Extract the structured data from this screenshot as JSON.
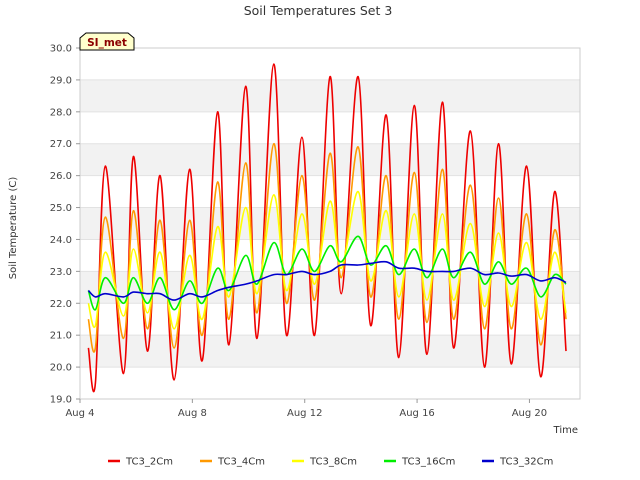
{
  "chart_data": {
    "type": "line",
    "title": "Soil Temperatures Set 3",
    "xlabel": "Time",
    "ylabel": "Soil Temperature (C)",
    "site_tag": "SI_met",
    "x_units": "day of August",
    "xlim": [
      4,
      21.8
    ],
    "ylim": [
      19.0,
      30.0
    ],
    "y_ticks": [
      "19.0",
      "20.0",
      "21.0",
      "22.0",
      "23.0",
      "24.0",
      "25.0",
      "26.0",
      "27.0",
      "28.0",
      "29.0",
      "30.0"
    ],
    "x_ticks": [
      {
        "value": 4,
        "label": "Aug 4"
      },
      {
        "value": 8,
        "label": "Aug 8"
      },
      {
        "value": 12,
        "label": "Aug 12"
      },
      {
        "value": 16,
        "label": "Aug 16"
      },
      {
        "value": 20,
        "label": "Aug 20"
      }
    ],
    "grid": "horizontal alternating bands",
    "legend_position": "bottom",
    "x": [
      4.3,
      4.55,
      4.9,
      5.55,
      5.9,
      6.4,
      6.85,
      7.35,
      7.9,
      8.35,
      8.9,
      9.3,
      9.9,
      10.3,
      10.9,
      11.35,
      11.9,
      12.35,
      12.9,
      13.3,
      13.9,
      14.35,
      14.9,
      15.35,
      15.9,
      16.35,
      16.9,
      17.3,
      17.9,
      18.4,
      18.9,
      19.35,
      19.9,
      20.4,
      20.9,
      21.3
    ],
    "series": [
      {
        "name": "TC3_2Cm",
        "color": "#ee0000",
        "values": [
          20.6,
          19.5,
          26.3,
          19.8,
          26.6,
          20.5,
          26.0,
          19.6,
          26.2,
          20.2,
          28.0,
          20.7,
          28.8,
          20.9,
          29.5,
          21.0,
          27.2,
          21.0,
          29.1,
          22.3,
          29.1,
          21.3,
          27.9,
          20.3,
          28.2,
          20.4,
          28.3,
          20.6,
          27.4,
          20.0,
          27.0,
          20.1,
          26.3,
          19.7,
          25.5,
          20.5
        ]
      },
      {
        "name": "TC3_4Cm",
        "color": "#ff9900",
        "values": [
          21.5,
          20.6,
          24.7,
          20.9,
          24.9,
          21.2,
          24.6,
          20.6,
          24.6,
          21.0,
          25.8,
          21.5,
          26.4,
          21.7,
          27.0,
          22.0,
          26.0,
          22.1,
          26.7,
          22.8,
          26.9,
          22.2,
          26.0,
          21.5,
          26.1,
          21.4,
          26.2,
          21.5,
          25.7,
          21.2,
          25.3,
          21.2,
          24.8,
          20.7,
          24.3,
          21.5
        ]
      },
      {
        "name": "TC3_8Cm",
        "color": "#ffff00",
        "values": [
          22.0,
          21.3,
          23.6,
          21.6,
          23.7,
          21.7,
          23.6,
          21.2,
          23.5,
          21.5,
          24.4,
          22.2,
          25.0,
          22.3,
          25.4,
          22.4,
          24.8,
          22.6,
          25.2,
          23.1,
          25.5,
          22.7,
          24.9,
          22.2,
          24.8,
          22.1,
          24.8,
          22.1,
          24.5,
          21.9,
          24.2,
          21.9,
          23.9,
          21.5,
          23.6,
          21.7
        ]
      },
      {
        "name": "TC3_16Cm",
        "color": "#00ee00",
        "values": [
          22.4,
          21.8,
          22.8,
          22.0,
          22.8,
          22.0,
          22.8,
          21.8,
          22.7,
          22.0,
          23.1,
          22.4,
          23.5,
          22.6,
          23.9,
          22.9,
          23.7,
          23.0,
          23.8,
          23.3,
          24.1,
          23.2,
          23.8,
          22.9,
          23.7,
          22.8,
          23.7,
          22.8,
          23.6,
          22.6,
          23.3,
          22.6,
          23.1,
          22.2,
          22.9,
          22.6
        ]
      },
      {
        "name": "TC3_32Cm",
        "color": "#0000cc",
        "values": [
          22.4,
          22.2,
          22.3,
          22.2,
          22.35,
          22.3,
          22.3,
          22.1,
          22.3,
          22.2,
          22.4,
          22.5,
          22.6,
          22.7,
          22.9,
          22.9,
          23.0,
          22.9,
          23.0,
          23.2,
          23.2,
          23.25,
          23.3,
          23.1,
          23.1,
          23.0,
          23.0,
          23.0,
          23.1,
          22.9,
          22.95,
          22.85,
          22.9,
          22.7,
          22.8,
          22.65
        ]
      }
    ]
  }
}
